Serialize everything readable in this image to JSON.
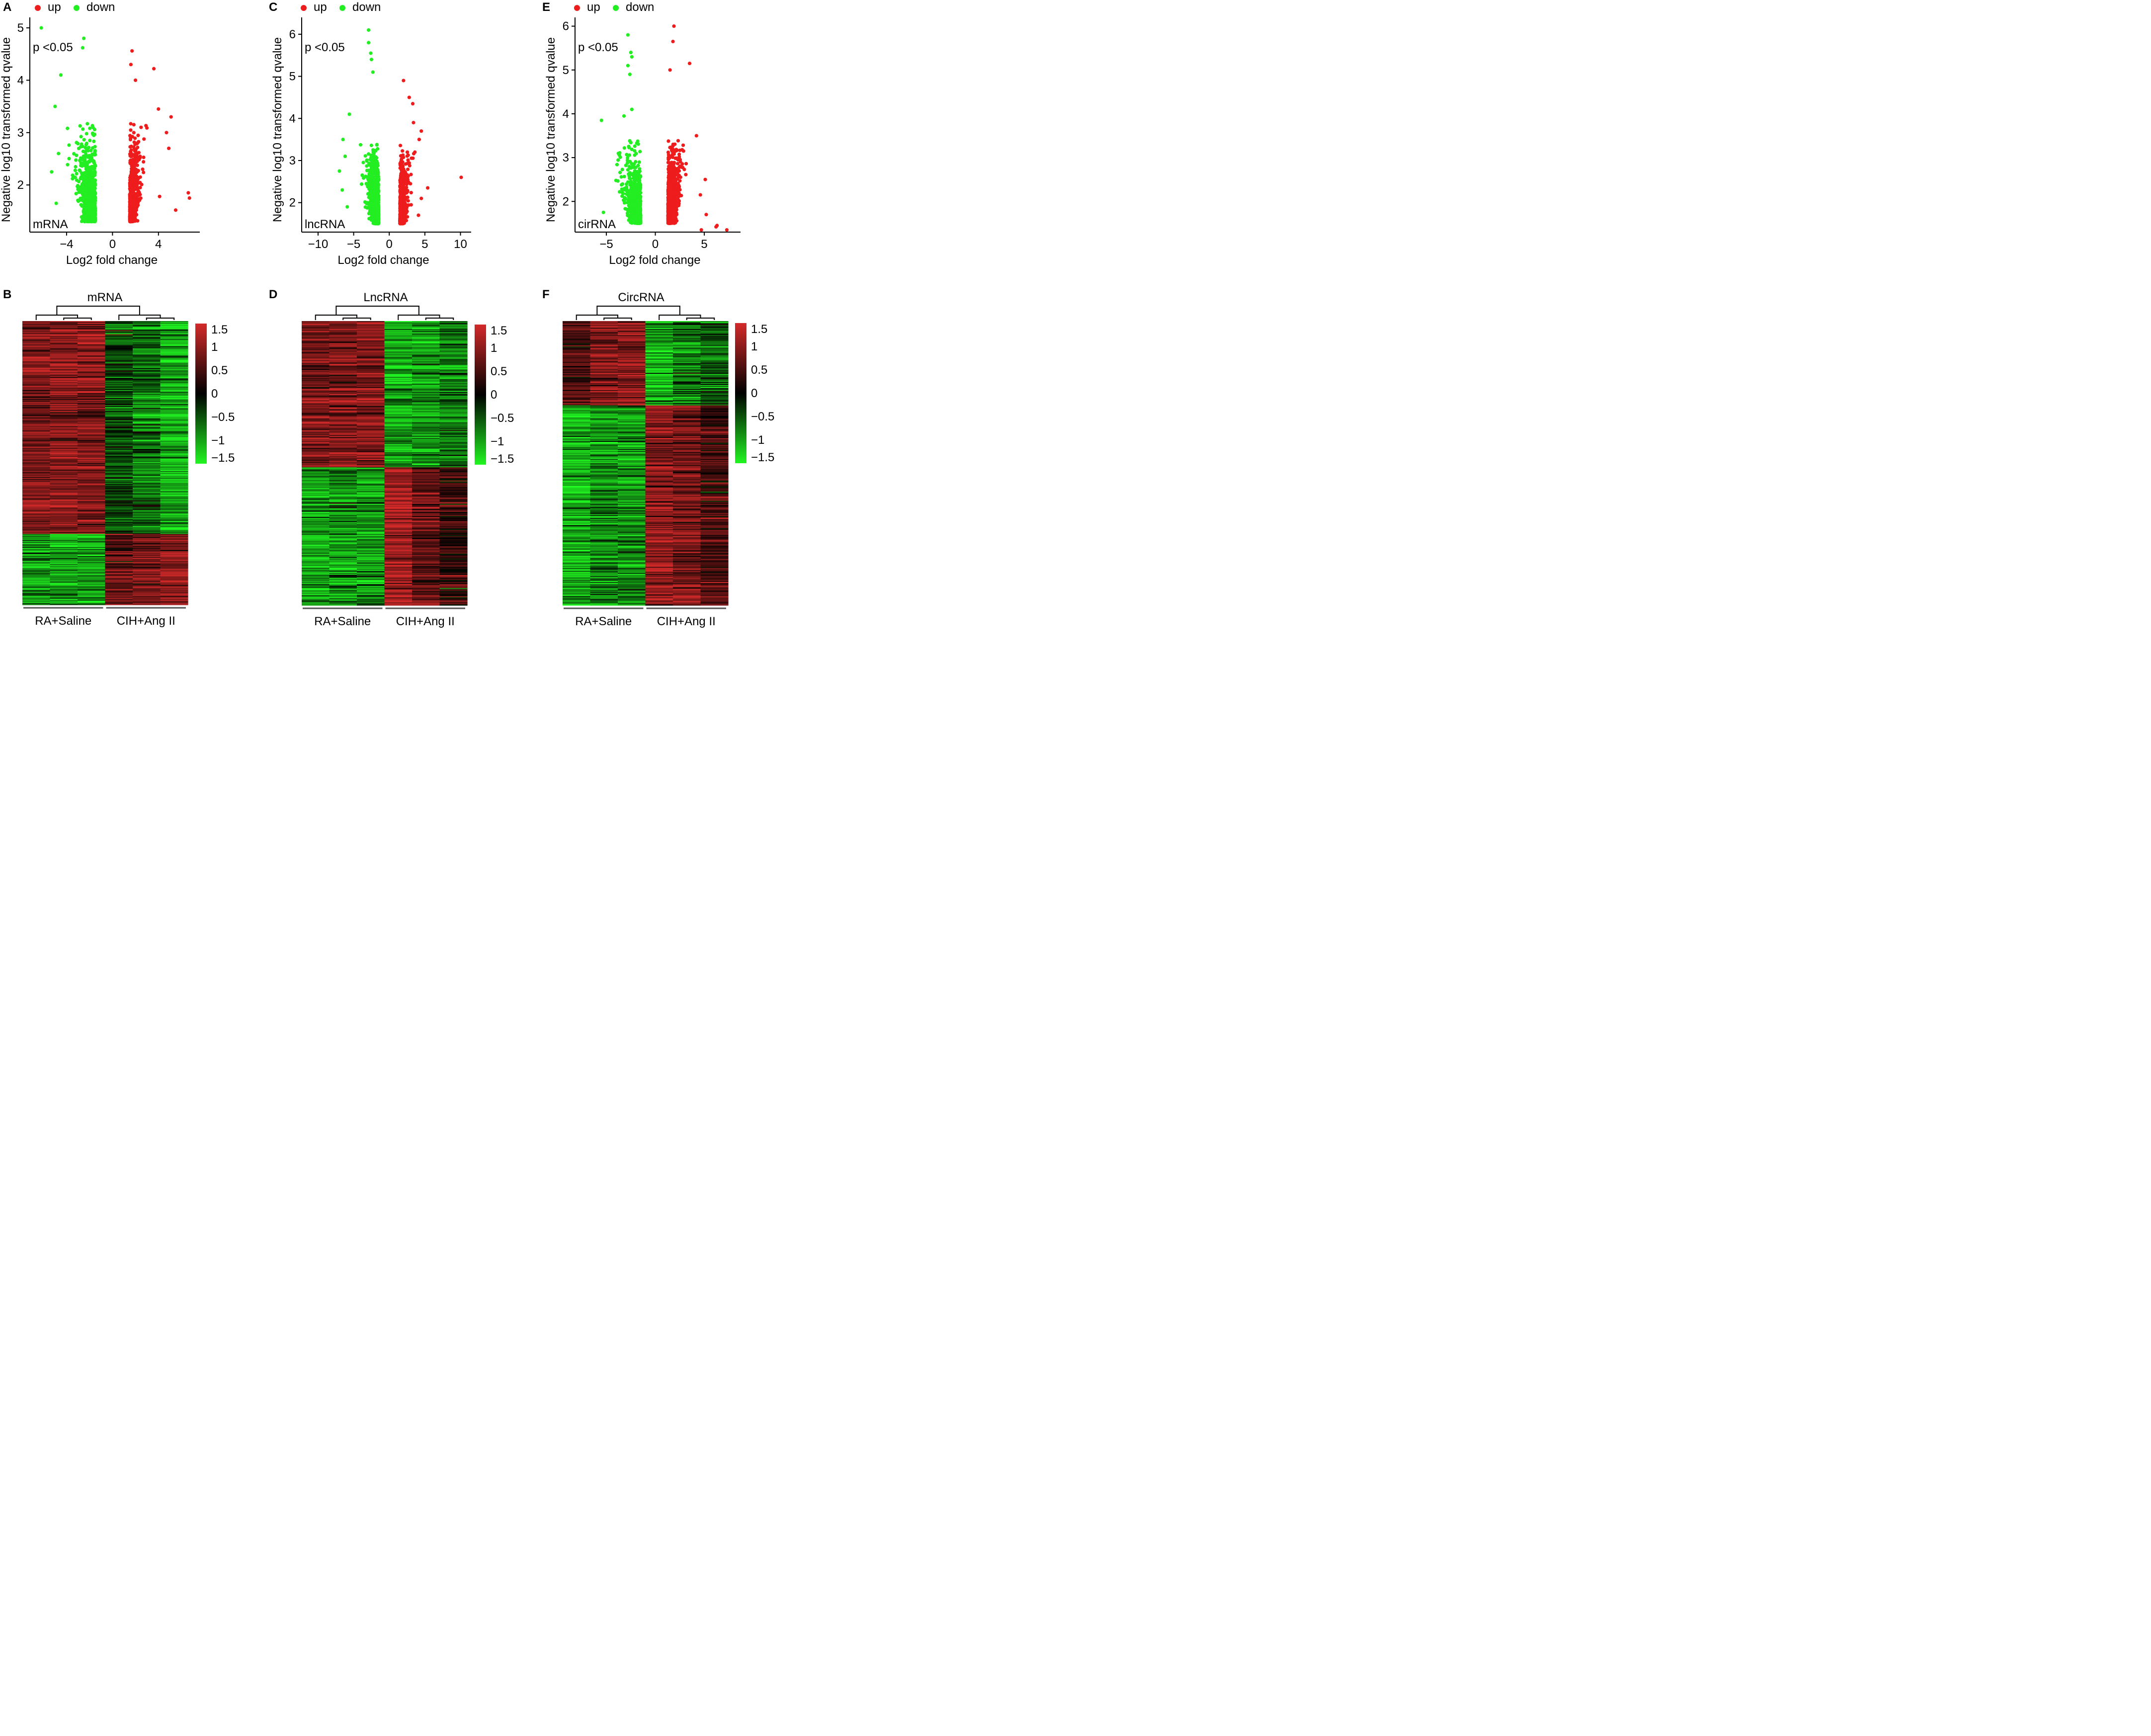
{
  "figure": {
    "top_row_kind": "volcano",
    "bottom_row_kind": "heatmap"
  },
  "colors": {
    "up": "#ee1c1c",
    "down": "#22ee22",
    "heat_high": "#d42a2a",
    "heat_mid": "#000000",
    "heat_low": "#21f521",
    "axis": "#000000"
  },
  "chart_data": [
    {
      "panel": "A",
      "type": "scatter",
      "legend": {
        "up": "up",
        "down": "down",
        "placement": "top-left"
      },
      "annotation": "p <0.05",
      "corner_label": "mRNA",
      "xlabel": "Log2 fold change",
      "ylabel": "Negative log10 transformed qvalue",
      "xlim": [
        -7.2,
        7.6
      ],
      "ylim": [
        1.1,
        5.2
      ],
      "xticks": [
        {
          "v": -4,
          "label": "−4"
        },
        {
          "v": 0,
          "label": "0"
        },
        {
          "v": 4,
          "label": "4"
        }
      ],
      "yticks": [
        {
          "v": 2,
          "label": "2"
        },
        {
          "v": 3,
          "label": "3"
        },
        {
          "v": 4,
          "label": "4"
        },
        {
          "v": 5,
          "label": "5"
        }
      ],
      "down_band": [
        -4.5,
        -1.5
      ],
      "up_band": [
        1.5,
        3.3
      ],
      "down_count": 1100,
      "up_count": 750,
      "down_outliers": [
        [
          -6.2,
          5.0
        ],
        [
          -2.5,
          4.8
        ],
        [
          -2.6,
          4.62
        ],
        [
          -4.5,
          4.1
        ],
        [
          -5.0,
          3.5
        ],
        [
          -5.3,
          2.25
        ],
        [
          -4.9,
          1.65
        ],
        [
          -4.7,
          2.6
        ]
      ],
      "up_outliers": [
        [
          1.7,
          4.56
        ],
        [
          1.6,
          4.3
        ],
        [
          3.6,
          4.22
        ],
        [
          2.0,
          4.0
        ],
        [
          5.1,
          3.3
        ],
        [
          4.0,
          3.45
        ],
        [
          4.7,
          3.0
        ],
        [
          6.6,
          1.85
        ],
        [
          6.7,
          1.75
        ],
        [
          5.5,
          1.52
        ],
        [
          4.1,
          1.78
        ],
        [
          4.9,
          2.7
        ]
      ]
    },
    {
      "panel": "C",
      "type": "scatter",
      "legend": {
        "up": "up",
        "down": "down",
        "placement": "top-left"
      },
      "annotation": "p <0.05",
      "corner_label": "lncRNA",
      "xlabel": "Log2 fold change",
      "ylabel": "Negative log10 transformed qvalue",
      "xlim": [
        -12.3,
        11.5
      ],
      "ylim": [
        1.3,
        6.4
      ],
      "xticks": [
        {
          "v": -10,
          "label": "−10"
        },
        {
          "v": -5,
          "label": "−5"
        },
        {
          "v": 0,
          "label": "0"
        },
        {
          "v": 5,
          "label": "5"
        },
        {
          "v": 10,
          "label": "10"
        }
      ],
      "yticks": [
        {
          "v": 2,
          "label": "2"
        },
        {
          "v": 3,
          "label": "3"
        },
        {
          "v": 4,
          "label": "4"
        },
        {
          "v": 5,
          "label": "5"
        },
        {
          "v": 6,
          "label": "6"
        }
      ],
      "down_band": [
        -4.5,
        -1.5
      ],
      "up_band": [
        1.5,
        3.8
      ],
      "down_count": 1500,
      "up_count": 750,
      "down_outliers": [
        [
          -2.9,
          6.1
        ],
        [
          -2.9,
          5.8
        ],
        [
          -2.6,
          5.55
        ],
        [
          -2.5,
          5.4
        ],
        [
          -2.3,
          5.1
        ],
        [
          -7.0,
          2.75
        ],
        [
          -6.5,
          3.5
        ],
        [
          -6.2,
          3.1
        ],
        [
          -6.6,
          2.3
        ],
        [
          -5.9,
          1.9
        ],
        [
          -5.6,
          4.1
        ]
      ],
      "up_outliers": [
        [
          2.0,
          4.9
        ],
        [
          2.8,
          4.5
        ],
        [
          3.3,
          4.35
        ],
        [
          3.4,
          3.9
        ],
        [
          4.5,
          3.7
        ],
        [
          4.2,
          3.5
        ],
        [
          3.6,
          3.2
        ],
        [
          5.4,
          2.35
        ],
        [
          10.1,
          2.6
        ],
        [
          4.5,
          2.1
        ],
        [
          4.1,
          1.7
        ]
      ]
    },
    {
      "panel": "E",
      "type": "scatter",
      "legend": {
        "up": "up",
        "down": "down",
        "placement": "top-left"
      },
      "annotation": "p <0.05",
      "corner_label": "cirRNA",
      "xlabel": "Log2 fold change",
      "ylabel": "Negative log10 transformed qvalue",
      "xlim": [
        -8.2,
        8.7
      ],
      "ylim": [
        1.3,
        6.2
      ],
      "xticks": [
        {
          "v": -5,
          "label": "−5"
        },
        {
          "v": 0,
          "label": "0"
        },
        {
          "v": 5,
          "label": "5"
        }
      ],
      "yticks": [
        {
          "v": 2,
          "label": "2"
        },
        {
          "v": 3,
          "label": "3"
        },
        {
          "v": 4,
          "label": "4"
        },
        {
          "v": 5,
          "label": "5"
        },
        {
          "v": 6,
          "label": "6"
        }
      ],
      "down_band": [
        -5.0,
        -1.5
      ],
      "up_band": [
        1.3,
        3.5
      ],
      "down_count": 850,
      "up_count": 1500,
      "down_outliers": [
        [
          -2.8,
          5.8
        ],
        [
          -2.5,
          5.4
        ],
        [
          -2.4,
          5.3
        ],
        [
          -2.8,
          5.1
        ],
        [
          -2.6,
          4.9
        ],
        [
          -5.5,
          3.85
        ],
        [
          -3.2,
          3.95
        ],
        [
          -2.4,
          4.1
        ],
        [
          -5.3,
          1.75
        ]
      ],
      "up_outliers": [
        [
          1.9,
          6.0
        ],
        [
          1.8,
          5.65
        ],
        [
          3.5,
          5.15
        ],
        [
          1.5,
          5.0
        ],
        [
          4.2,
          3.5
        ],
        [
          5.1,
          2.5
        ],
        [
          4.6,
          2.15
        ],
        [
          5.2,
          1.7
        ],
        [
          6.3,
          1.45
        ],
        [
          6.2,
          1.42
        ],
        [
          7.3,
          1.35
        ],
        [
          4.7,
          1.35
        ]
      ]
    },
    {
      "panel": "B",
      "type": "heatmap",
      "title": "mRNA",
      "groups": [
        {
          "label": "RA+Saline",
          "columns": 3
        },
        {
          "label": "CIH+Ang II",
          "columns": 3
        }
      ],
      "scale": {
        "min": -1.5,
        "max": 1.5,
        "ticks": [
          {
            "v": 1.5,
            "label": "1.5"
          },
          {
            "v": 1,
            "label": "1"
          },
          {
            "v": 0.5,
            "label": "0.5"
          },
          {
            "v": 0,
            "label": "0"
          },
          {
            "v": -0.5,
            "label": "−0.5"
          },
          {
            "v": -1,
            "label": "−1"
          },
          {
            "v": -1.5,
            "label": "−1.5"
          }
        ]
      },
      "rows": 280,
      "blocks": [
        {
          "fraction": 0.75,
          "column_means": [
            0.85,
            0.95,
            0.9,
            -0.45,
            -0.7,
            -1.05
          ]
        },
        {
          "fraction": 0.25,
          "column_means": [
            -0.9,
            -1.0,
            -0.95,
            0.7,
            0.85,
            1.0
          ]
        }
      ]
    },
    {
      "panel": "D",
      "type": "heatmap",
      "title": "LncRNA",
      "groups": [
        {
          "label": "RA+Saline",
          "columns": 3
        },
        {
          "label": "CIH+Ang II",
          "columns": 3
        }
      ],
      "scale": {
        "min": -1.5,
        "max": 1.5,
        "ticks": [
          {
            "v": 1.5,
            "label": "1.5"
          },
          {
            "v": 1,
            "label": "1"
          },
          {
            "v": 0.5,
            "label": "0.5"
          },
          {
            "v": 0,
            "label": "0"
          },
          {
            "v": -0.5,
            "label": "−0.5"
          },
          {
            "v": -1,
            "label": "−1"
          },
          {
            "v": -1.5,
            "label": "−1.5"
          }
        ]
      },
      "rows": 280,
      "blocks": [
        {
          "fraction": 0.515,
          "column_means": [
            0.85,
            0.9,
            0.95,
            -1.0,
            -0.95,
            -0.7
          ]
        },
        {
          "fraction": 0.485,
          "column_means": [
            -0.95,
            -0.9,
            -0.95,
            1.15,
            0.7,
            0.35
          ]
        }
      ]
    },
    {
      "panel": "F",
      "type": "heatmap",
      "title": "CircRNA",
      "groups": [
        {
          "label": "RA+Saline",
          "columns": 3
        },
        {
          "label": "CIH+Ang II",
          "columns": 3
        }
      ],
      "scale": {
        "min": -1.5,
        "max": 1.5,
        "ticks": [
          {
            "v": 1.5,
            "label": "1.5"
          },
          {
            "v": 1,
            "label": "1"
          },
          {
            "v": 0.5,
            "label": "0.5"
          },
          {
            "v": 0,
            "label": "0"
          },
          {
            "v": -0.5,
            "label": "−0.5"
          },
          {
            "v": -1,
            "label": "−1"
          },
          {
            "v": -1.5,
            "label": "−1.5"
          }
        ]
      },
      "rows": 280,
      "blocks": [
        {
          "fraction": 0.295,
          "column_means": [
            0.55,
            0.9,
            0.95,
            -1.05,
            -0.75,
            -0.55
          ]
        },
        {
          "fraction": 0.705,
          "column_means": [
            -1.05,
            -0.85,
            -0.9,
            0.95,
            0.85,
            0.5
          ]
        }
      ]
    }
  ]
}
